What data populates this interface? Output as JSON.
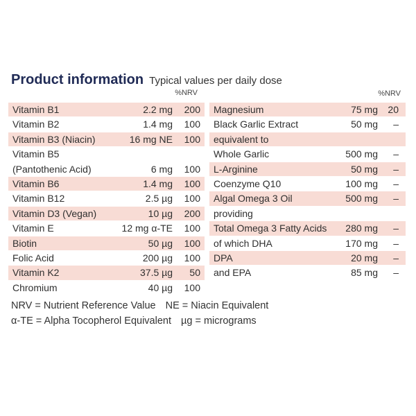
{
  "header": {
    "title": "Product information",
    "subtitle": "Typical values per daily dose",
    "nrv_label": "%NRV"
  },
  "left_table": [
    {
      "name": "Vitamin B1",
      "amount": "2.2 mg",
      "nrv": "200",
      "shaded": true
    },
    {
      "name": "Vitamin B2",
      "amount": "1.4 mg",
      "nrv": "100",
      "shaded": false
    },
    {
      "name": "Vitamin B3 (Niacin)",
      "amount": "16 mg NE",
      "nrv": "100",
      "shaded": true
    },
    {
      "name": "Vitamin B5",
      "amount": "",
      "nrv": "",
      "shaded": false
    },
    {
      "name": "(Pantothenic Acid)",
      "amount": "6 mg",
      "nrv": "100",
      "shaded": false
    },
    {
      "name": "Vitamin B6",
      "amount": "1.4 mg",
      "nrv": "100",
      "shaded": true
    },
    {
      "name": "Vitamin B12",
      "amount": "2.5 µg",
      "nrv": "100",
      "shaded": false
    },
    {
      "name": "Vitamin D3 (Vegan)",
      "amount": "10 µg",
      "nrv": "200",
      "shaded": true
    },
    {
      "name": "Vitamin E",
      "amount": "12 mg α-TE",
      "nrv": "100",
      "shaded": false
    },
    {
      "name": "Biotin",
      "amount": "50 µg",
      "nrv": "100",
      "shaded": true
    },
    {
      "name": "Folic Acid",
      "amount": "200 µg",
      "nrv": "100",
      "shaded": false
    },
    {
      "name": "Vitamin K2",
      "amount": "37.5 µg",
      "nrv": "50",
      "shaded": true
    },
    {
      "name": "Chromium",
      "amount": "40 µg",
      "nrv": "100",
      "shaded": false
    }
  ],
  "right_table": [
    {
      "name": "Magnesium",
      "amount": "75 mg",
      "nrv": "20",
      "shaded": true
    },
    {
      "name": "Black Garlic Extract",
      "amount": "50 mg",
      "nrv": "–",
      "shaded": false
    },
    {
      "name": "equivalent to",
      "amount": "",
      "nrv": "",
      "shaded": true
    },
    {
      "name": "Whole Garlic",
      "amount": "500 mg",
      "nrv": "–",
      "shaded": false
    },
    {
      "name": "L-Arginine",
      "amount": "50 mg",
      "nrv": "–",
      "shaded": true
    },
    {
      "name": "Coenzyme Q10",
      "amount": "100 mg",
      "nrv": "–",
      "shaded": false
    },
    {
      "name": "Algal Omega 3 Oil",
      "amount": "500 mg",
      "nrv": "–",
      "shaded": true
    },
    {
      "name": "providing",
      "amount": "",
      "nrv": "",
      "shaded": false
    },
    {
      "name": "Total Omega 3 Fatty Acids",
      "amount": "280 mg",
      "nrv": "–",
      "shaded": true
    },
    {
      "name": "of which DHA",
      "amount": "170 mg",
      "nrv": "–",
      "shaded": false
    },
    {
      "name": "DPA",
      "amount": "20 mg",
      "nrv": "–",
      "shaded": true
    },
    {
      "name": "and EPA",
      "amount": "85 mg",
      "nrv": "–",
      "shaded": false
    }
  ],
  "footnotes": {
    "nrv": "NRV = Nutrient Reference Value",
    "ne": "NE = Niacin Equivalent",
    "ate": "α-TE = Alpha Tocopherol Equivalent",
    "ug": "µg = micrograms"
  },
  "colors": {
    "row_shade": "#f8dcd5",
    "title": "#1f2a55"
  }
}
